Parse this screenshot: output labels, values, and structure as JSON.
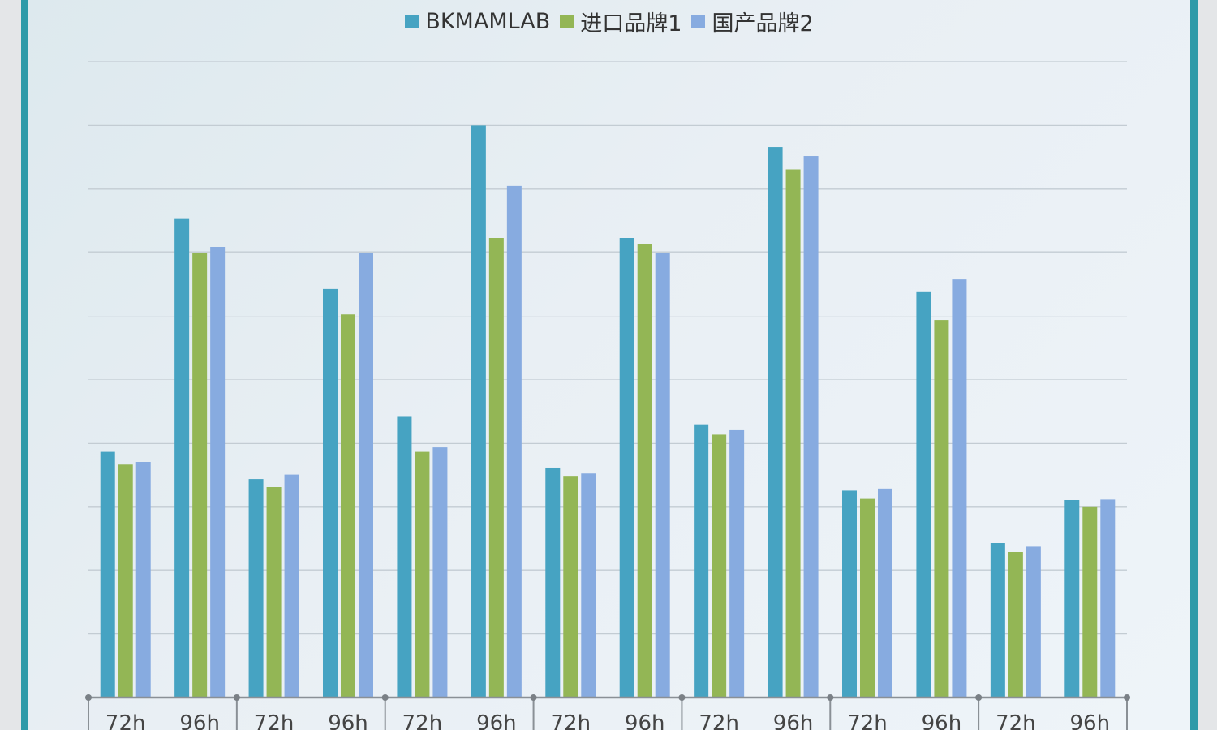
{
  "chart_data": {
    "type": "bar",
    "title": "",
    "xlabel": "",
    "ylabel": "",
    "ylim": [
      0,
      100
    ],
    "grid": true,
    "legend_position": "top-center",
    "groups": 7,
    "categories": [
      "72h",
      "96h",
      "72h",
      "96h",
      "72h",
      "96h",
      "72h",
      "96h",
      "72h",
      "96h",
      "72h",
      "96h",
      "72h",
      "96h"
    ],
    "series": [
      {
        "name": "BKMAMLAB",
        "color": "#46a3c2",
        "values": [
          38.7,
          75.3,
          34.3,
          64.3,
          44.2,
          90.0,
          36.1,
          72.3,
          42.9,
          86.6,
          32.6,
          63.8,
          24.3,
          31.0
        ]
      },
      {
        "name": "进口品牌1",
        "color": "#93b655",
        "values": [
          36.7,
          69.9,
          33.1,
          60.3,
          38.7,
          72.3,
          34.8,
          71.3,
          41.4,
          83.1,
          31.3,
          59.3,
          22.9,
          30.0
        ]
      },
      {
        "name": "国产品牌2",
        "color": "#87abe0",
        "values": [
          37.0,
          70.9,
          35.0,
          69.9,
          39.4,
          80.5,
          35.3,
          69.9,
          42.1,
          85.2,
          32.8,
          65.8,
          23.8,
          31.2
        ]
      }
    ]
  }
}
